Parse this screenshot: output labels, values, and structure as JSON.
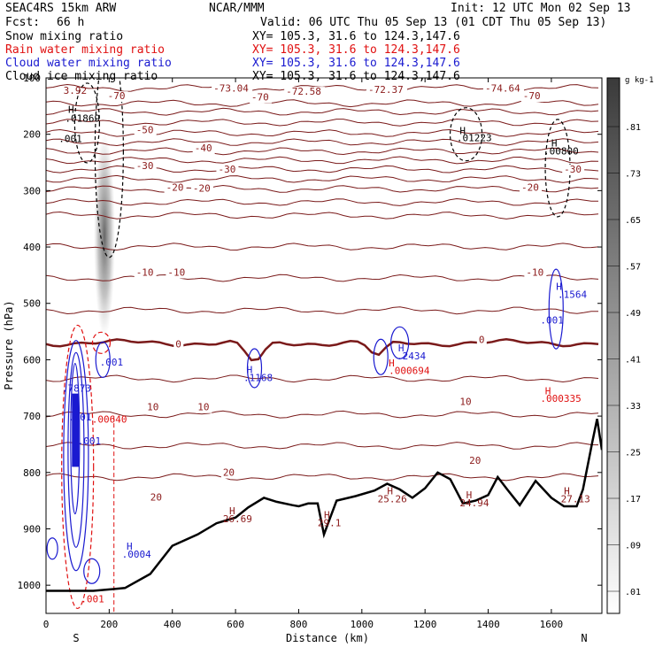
{
  "header": {
    "model": "SEAC4RS 15km ARW",
    "fcst_label": "Fcst:",
    "fcst_value": "66 h",
    "center": "NCAR/MMM",
    "init": "Init: 12 UTC Mon 02 Sep 13",
    "valid": "Valid: 06 UTC Thu 05 Sep 13 (01 CDT Thu 05 Sep 13)"
  },
  "fields": [
    {
      "name": "Snow mixing ratio",
      "xy": "XY= 105.3, 31.6 to 124.3,147.6",
      "color": "#000000"
    },
    {
      "name": "Rain water mixing ratio",
      "xy": "XY= 105.3, 31.6 to 124.3,147.6",
      "color": "#e01010"
    },
    {
      "name": "Cloud water mixing ratio",
      "xy": "XY= 105.3, 31.6 to 124.3,147.6",
      "color": "#1a1ad0"
    },
    {
      "name": "Cloud ice mixing ratio",
      "xy": "XY= 105.3, 31.6 to 124.3,147.6",
      "color": "#000000"
    }
  ],
  "colorbar": {
    "unit": "g kg-1",
    "labels": [
      ".81",
      ".73",
      ".65",
      ".57",
      ".49",
      ".41",
      ".33",
      ".25",
      ".17",
      ".09",
      ".01"
    ]
  },
  "chart_data": {
    "type": "cross-section",
    "xlabel": "Distance (km)",
    "ylabel": "Pressure (hPa)",
    "xlim": [
      0,
      1760
    ],
    "ylim": [
      1050,
      100
    ],
    "x_ticks": [
      0,
      200,
      400,
      600,
      800,
      1000,
      1200,
      1400,
      1600
    ],
    "y_ticks": [
      100,
      200,
      300,
      400,
      500,
      600,
      700,
      800,
      900,
      1000
    ],
    "endpoints": {
      "left": "S",
      "right": "N"
    },
    "temperature_contours_C": [
      {
        "level": -70,
        "p": 160
      },
      {
        "level": -60,
        "p": 198
      },
      {
        "level": -50,
        "p": 230
      },
      {
        "level": -40,
        "p": 262
      },
      {
        "level": -30,
        "p": 297
      },
      {
        "level": -20,
        "p": 344
      },
      {
        "level": -10,
        "p": 455
      },
      {
        "level": 0,
        "p": 570
      },
      {
        "level": 10,
        "p": 697
      },
      {
        "level": 20,
        "p": 808
      }
    ],
    "temperature_labels": [
      {
        "text": "-70",
        "x": 195,
        "p": 138
      },
      {
        "text": "-73.04",
        "x": 530,
        "p": 124
      },
      {
        "text": "-72.58",
        "x": 760,
        "p": 130
      },
      {
        "text": "-72.37",
        "x": 1020,
        "p": 127
      },
      {
        "text": "-74.64",
        "x": 1390,
        "p": 124
      },
      {
        "text": "-70",
        "x": 650,
        "p": 140
      },
      {
        "text": "-70",
        "x": 1510,
        "p": 138
      },
      {
        "text": "-50",
        "x": 285,
        "p": 198
      },
      {
        "text": "-40",
        "x": 470,
        "p": 230
      },
      {
        "text": "-30",
        "x": 285,
        "p": 262
      },
      {
        "text": "-30",
        "x": 545,
        "p": 268
      },
      {
        "text": "-30",
        "x": 1640,
        "p": 268
      },
      {
        "text": "-20",
        "x": 380,
        "p": 300
      },
      {
        "text": "-20",
        "x": 465,
        "p": 302
      },
      {
        "text": "-20",
        "x": 1505,
        "p": 300
      },
      {
        "text": "-10",
        "x": 285,
        "p": 451
      },
      {
        "text": "-10",
        "x": 385,
        "p": 451
      },
      {
        "text": "-10",
        "x": 1520,
        "p": 451
      },
      {
        "text": "0",
        "x": 410,
        "p": 578
      },
      {
        "text": "0",
        "x": 1370,
        "p": 570
      },
      {
        "text": "10",
        "x": 320,
        "p": 690
      },
      {
        "text": "10",
        "x": 480,
        "p": 690
      },
      {
        "text": "10",
        "x": 1310,
        "p": 680
      },
      {
        "text": "20",
        "x": 330,
        "p": 850
      },
      {
        "text": "20",
        "x": 560,
        "p": 806
      },
      {
        "text": "20",
        "x": 1340,
        "p": 785
      }
    ],
    "extrema_labels": [
      {
        "text": "3.92",
        "x": 55,
        "p": 128,
        "color": "#8b1a1a"
      },
      {
        "text": "H",
        "x": 70,
        "p": 162,
        "color": "#000000"
      },
      {
        "text": ".01869",
        "x": 60,
        "p": 178,
        "color": "#000000"
      },
      {
        "text": ".001",
        "x": 40,
        "p": 214,
        "color": "#000000"
      },
      {
        "text": "H",
        "x": 1310,
        "p": 200,
        "color": "#000000"
      },
      {
        "text": ".01223",
        "x": 1300,
        "p": 212,
        "color": "#000000"
      },
      {
        "text": "H",
        "x": 1600,
        "p": 222,
        "color": "#000000"
      },
      {
        "text": ".00800",
        "x": 1575,
        "p": 236,
        "color": "#000000"
      },
      {
        "text": "H",
        "x": 1615,
        "p": 476,
        "color": "#1a1ad0"
      },
      {
        "text": ".1564",
        "x": 1620,
        "p": 490,
        "color": "#1a1ad0"
      },
      {
        "text": ".001",
        "x": 1565,
        "p": 536,
        "color": "#1a1ad0"
      },
      {
        "text": "H",
        "x": 1115,
        "p": 585,
        "color": "#1a1ad0"
      },
      {
        "text": ".2434",
        "x": 1110,
        "p": 599,
        "color": "#1a1ad0"
      },
      {
        "text": "H",
        "x": 1085,
        "p": 612,
        "color": "#e01010"
      },
      {
        "text": ".000694",
        "x": 1085,
        "p": 625,
        "color": "#e01010"
      },
      {
        "text": ".001",
        "x": 170,
        "p": 610,
        "color": "#1a1ad0"
      },
      {
        "text": "H",
        "x": 635,
        "p": 624,
        "color": "#1a1ad0"
      },
      {
        "text": ".1168",
        "x": 625,
        "p": 638,
        "color": "#1a1ad0"
      },
      {
        "text": ".7873",
        "x": 50,
        "p": 657,
        "color": "#1a1ad0"
      },
      {
        "text": ".401",
        "x": 70,
        "p": 708,
        "color": "#1a1ad0"
      },
      {
        "text": ".001",
        "x": 100,
        "p": 750,
        "color": "#1a1ad0"
      },
      {
        "text": ".00640",
        "x": 145,
        "p": 712,
        "color": "#e01010"
      },
      {
        "text": "H",
        "x": 1580,
        "p": 661,
        "color": "#e01010"
      },
      {
        "text": ".000335",
        "x": 1565,
        "p": 675,
        "color": "#e01010"
      },
      {
        "text": "H",
        "x": 1080,
        "p": 839,
        "color": "#8b1a1a"
      },
      {
        "text": "25.26",
        "x": 1050,
        "p": 853,
        "color": "#8b1a1a"
      },
      {
        "text": "H",
        "x": 1330,
        "p": 846,
        "color": "#8b1a1a"
      },
      {
        "text": "24.94",
        "x": 1310,
        "p": 860,
        "color": "#8b1a1a"
      },
      {
        "text": "H",
        "x": 1640,
        "p": 839,
        "color": "#8b1a1a"
      },
      {
        "text": "27.13",
        "x": 1630,
        "p": 853,
        "color": "#8b1a1a"
      },
      {
        "text": "H",
        "x": 580,
        "p": 874,
        "color": "#8b1a1a"
      },
      {
        "text": "26.69",
        "x": 560,
        "p": 888,
        "color": "#8b1a1a"
      },
      {
        "text": "H",
        "x": 880,
        "p": 881,
        "color": "#8b1a1a"
      },
      {
        "text": "29.1",
        "x": 860,
        "p": 895,
        "color": "#8b1a1a"
      },
      {
        "text": "H",
        "x": 255,
        "p": 937,
        "color": "#1a1ad0"
      },
      {
        "text": ".0004",
        "x": 240,
        "p": 951,
        "color": "#1a1ad0"
      },
      {
        "text": ".001",
        "x": 110,
        "p": 1030,
        "color": "#e01010"
      }
    ],
    "terrain": [
      [
        0,
        1010
      ],
      [
        150,
        1010
      ],
      [
        250,
        1005
      ],
      [
        330,
        980
      ],
      [
        400,
        930
      ],
      [
        480,
        910
      ],
      [
        540,
        890
      ],
      [
        600,
        880
      ],
      [
        640,
        862
      ],
      [
        690,
        845
      ],
      [
        730,
        852
      ],
      [
        780,
        858
      ],
      [
        800,
        860
      ],
      [
        830,
        855
      ],
      [
        860,
        855
      ],
      [
        880,
        910
      ],
      [
        900,
        880
      ],
      [
        920,
        850
      ],
      [
        980,
        842
      ],
      [
        1040,
        832
      ],
      [
        1080,
        820
      ],
      [
        1120,
        830
      ],
      [
        1160,
        845
      ],
      [
        1200,
        828
      ],
      [
        1240,
        800
      ],
      [
        1280,
        812
      ],
      [
        1320,
        855
      ],
      [
        1360,
        850
      ],
      [
        1400,
        840
      ],
      [
        1430,
        808
      ],
      [
        1460,
        830
      ],
      [
        1500,
        858
      ],
      [
        1550,
        815
      ],
      [
        1600,
        845
      ],
      [
        1640,
        860
      ],
      [
        1680,
        860
      ],
      [
        1700,
        830
      ],
      [
        1730,
        745
      ],
      [
        1745,
        705
      ],
      [
        1760,
        760
      ]
    ]
  }
}
